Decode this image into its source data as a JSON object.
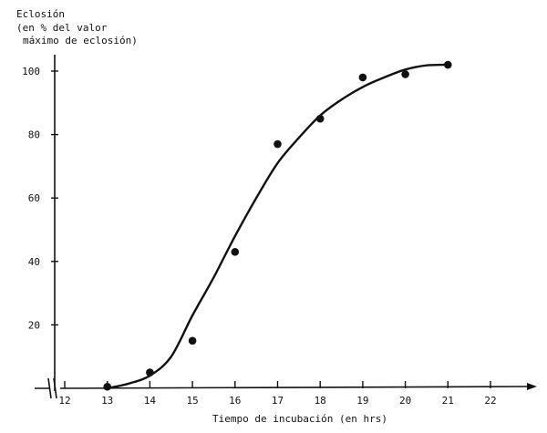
{
  "chart_data": {
    "type": "scatter",
    "ylabel_lines": [
      "Eclosión",
      "(en % del valor",
      "máximo de eclosión)"
    ],
    "xlabel": "Tiempo de incubación (en hrs)",
    "x_ticks": [
      12,
      13,
      14,
      15,
      16,
      17,
      18,
      19,
      20,
      21,
      22
    ],
    "y_ticks": [
      20,
      40,
      60,
      80,
      100
    ],
    "xlim": [
      11.5,
      23
    ],
    "ylim": [
      0,
      110
    ],
    "axis_break": true,
    "grid": false,
    "points": [
      {
        "x": 13,
        "y": 0.5
      },
      {
        "x": 14,
        "y": 5
      },
      {
        "x": 15,
        "y": 15
      },
      {
        "x": 16,
        "y": 43
      },
      {
        "x": 17,
        "y": 77
      },
      {
        "x": 18,
        "y": 85
      },
      {
        "x": 19,
        "y": 98
      },
      {
        "x": 20,
        "y": 99
      },
      {
        "x": 21,
        "y": 102
      }
    ],
    "curve": [
      {
        "x": 13,
        "y": 0
      },
      {
        "x": 13.5,
        "y": 1.5
      },
      {
        "x": 14,
        "y": 4
      },
      {
        "x": 14.5,
        "y": 10
      },
      {
        "x": 15,
        "y": 23
      },
      {
        "x": 15.5,
        "y": 35
      },
      {
        "x": 16,
        "y": 48
      },
      {
        "x": 16.5,
        "y": 60
      },
      {
        "x": 17,
        "y": 71
      },
      {
        "x": 17.5,
        "y": 79
      },
      {
        "x": 18,
        "y": 86
      },
      {
        "x": 18.5,
        "y": 91
      },
      {
        "x": 19,
        "y": 95
      },
      {
        "x": 19.5,
        "y": 98
      },
      {
        "x": 20,
        "y": 100.5
      },
      {
        "x": 20.5,
        "y": 101.8
      },
      {
        "x": 21,
        "y": 102
      }
    ]
  }
}
